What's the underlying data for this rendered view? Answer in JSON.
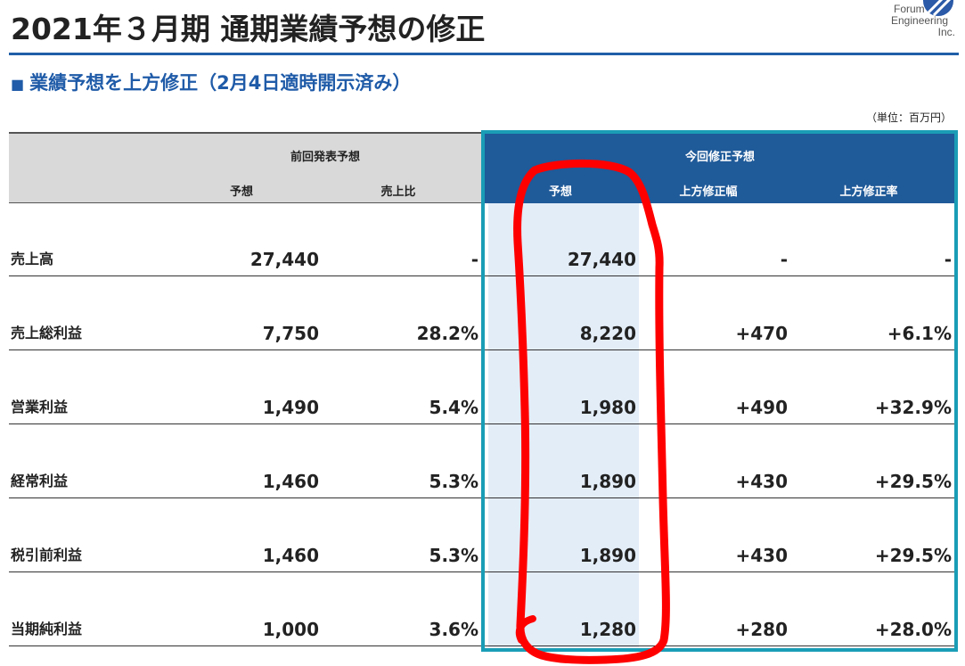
{
  "slide": {
    "title": "2021年３月期 通期業績予想の修正",
    "subtitle_marker": "■",
    "subtitle": "業績予想を上方修正（2月4日適時開示済み）",
    "unit": "（単位：百万円）"
  },
  "logo": {
    "icon": "company-logo-mark",
    "line1": "Forum",
    "line2": "Engineering",
    "line3": "Inc."
  },
  "table": {
    "group_previous": "前回発表予想",
    "group_current": "今回修正予想",
    "columns": [
      "予想",
      "売上比",
      "予想",
      "上方修正幅",
      "上方修正率"
    ],
    "rows": [
      {
        "label": "売上高",
        "values": [
          "27,440",
          "-",
          "27,440",
          "-",
          "-"
        ]
      },
      {
        "label": "売上総利益",
        "values": [
          "7,750",
          "28.2%",
          "8,220",
          "+470",
          "+6.1%"
        ]
      },
      {
        "label": "営業利益",
        "values": [
          "1,490",
          "5.4%",
          "1,980",
          "+490",
          "+32.9%"
        ]
      },
      {
        "label": "経常利益",
        "values": [
          "1,460",
          "5.3%",
          "1,890",
          "+430",
          "+29.5%"
        ]
      },
      {
        "label": "税引前利益",
        "values": [
          "1,460",
          "5.3%",
          "1,890",
          "+430",
          "+29.5%"
        ]
      },
      {
        "label": "当期純利益",
        "values": [
          "1,000",
          "3.6%",
          "1,280",
          "+280",
          "+28.0%"
        ]
      }
    ]
  },
  "colors": {
    "title_rule": "#1f5fa8",
    "subtitle": "#1f5ba8",
    "header_previous_bg": "#d9d9d9",
    "header_current_bg": "#1f5a99",
    "highlight_column": "#e3edf8",
    "frame": "#1a9db6",
    "logo_mark": "#2a5aa8",
    "annotation": "#ff0000"
  }
}
